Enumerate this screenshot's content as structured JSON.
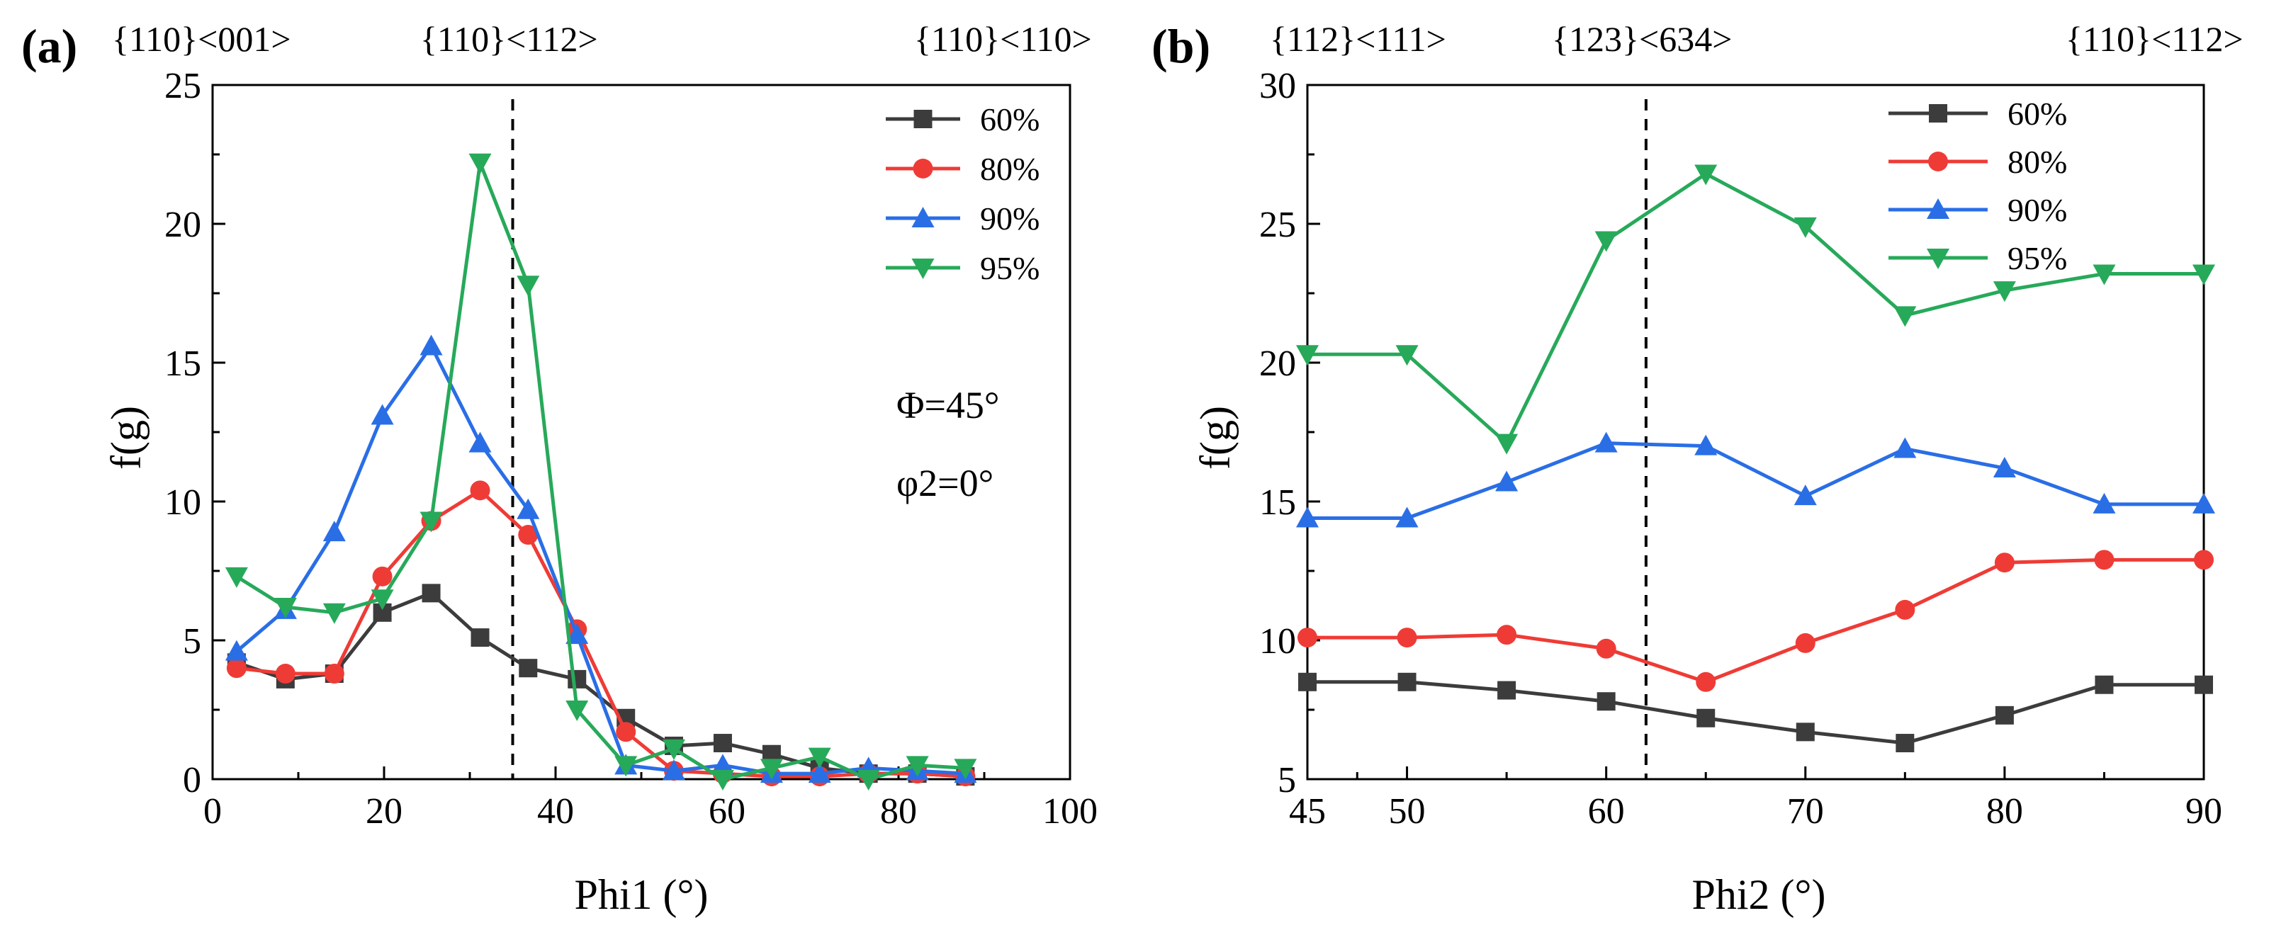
{
  "colors": {
    "60%": "#3c3c3c",
    "80%": "#ef3b36",
    "90%": "#2a6ee6",
    "95%": "#27a95a"
  },
  "chart_data": [
    {
      "type": "line",
      "panel": "(a)",
      "xlabel": "Phi1 (°)",
      "ylabel": "f(g)",
      "xlim": [
        0,
        100
      ],
      "ylim": [
        0,
        25
      ],
      "xticks": [
        "0",
        "20",
        "40",
        "60",
        "80",
        "100"
      ],
      "yticks": [
        "0",
        "5",
        "10",
        "15",
        "20",
        "25"
      ],
      "texture_labels": [
        {
          "text": "{110}<001>",
          "x": 0
        },
        {
          "text": "{110}<112>",
          "x": 35
        },
        {
          "text": "{110}<110>",
          "x": 90
        }
      ],
      "vline_x": 35,
      "annotations": [
        "Φ=45°",
        "φ2=0°"
      ],
      "legend_position": "top-right",
      "x": [
        2.8,
        8.5,
        14.2,
        19.8,
        25.5,
        31.2,
        36.8,
        42.5,
        48.2,
        53.8,
        59.5,
        65.2,
        70.8,
        76.5,
        82.2,
        87.8
      ],
      "series": [
        {
          "name": "60%",
          "marker": "square",
          "values": [
            4.2,
            3.6,
            3.8,
            6.0,
            6.7,
            5.1,
            4.0,
            3.6,
            2.2,
            1.2,
            1.3,
            0.9,
            0.4,
            0.2,
            0.2,
            0.1
          ]
        },
        {
          "name": "80%",
          "marker": "circle",
          "values": [
            4.0,
            3.8,
            3.8,
            7.3,
            9.3,
            10.4,
            8.8,
            5.4,
            1.7,
            0.3,
            0.2,
            0.1,
            0.1,
            0.2,
            0.2,
            0.1
          ]
        },
        {
          "name": "90%",
          "marker": "triangle-up",
          "values": [
            4.6,
            6.1,
            8.9,
            13.1,
            15.6,
            12.1,
            9.7,
            5.2,
            0.5,
            0.3,
            0.5,
            0.2,
            0.2,
            0.4,
            0.3,
            0.2
          ]
        },
        {
          "name": "95%",
          "marker": "triangle-down",
          "values": [
            7.3,
            6.2,
            6.0,
            6.5,
            9.3,
            22.2,
            17.8,
            2.5,
            0.5,
            1.1,
            0.0,
            0.4,
            0.8,
            0.0,
            0.5,
            0.4
          ]
        }
      ]
    },
    {
      "type": "line",
      "panel": "(b)",
      "xlabel": "Phi2 (°)",
      "ylabel": "f(g)",
      "xlim": [
        45,
        90
      ],
      "ylim": [
        5,
        30
      ],
      "xticks": [
        "45",
        "50",
        "60",
        "70",
        "80",
        "90"
      ],
      "yticks": [
        "5",
        "10",
        "15",
        "20",
        "25",
        "30"
      ],
      "texture_labels": [
        {
          "text": "{112}<111>",
          "x": 45
        },
        {
          "text": "{123}<634>",
          "x": 62
        },
        {
          "text": "{110}<112>",
          "x": 90
        }
      ],
      "vline_x": 62,
      "legend_position": "top-right",
      "x": [
        45,
        50,
        55,
        60,
        65,
        70,
        75,
        80,
        85,
        90
      ],
      "series": [
        {
          "name": "60%",
          "marker": "square",
          "values": [
            8.5,
            8.5,
            8.2,
            7.8,
            7.2,
            6.7,
            6.3,
            7.3,
            8.4,
            8.4
          ]
        },
        {
          "name": "80%",
          "marker": "circle",
          "values": [
            10.1,
            10.1,
            10.2,
            9.7,
            8.5,
            9.9,
            11.1,
            12.8,
            12.9,
            12.9
          ]
        },
        {
          "name": "90%",
          "marker": "triangle-up",
          "values": [
            14.4,
            14.4,
            15.7,
            17.1,
            17.0,
            15.2,
            16.9,
            16.2,
            14.9,
            14.9
          ]
        },
        {
          "name": "95%",
          "marker": "triangle-down",
          "values": [
            20.3,
            20.3,
            17.1,
            24.4,
            26.8,
            24.9,
            21.7,
            22.6,
            23.2,
            23.2
          ]
        }
      ]
    }
  ]
}
